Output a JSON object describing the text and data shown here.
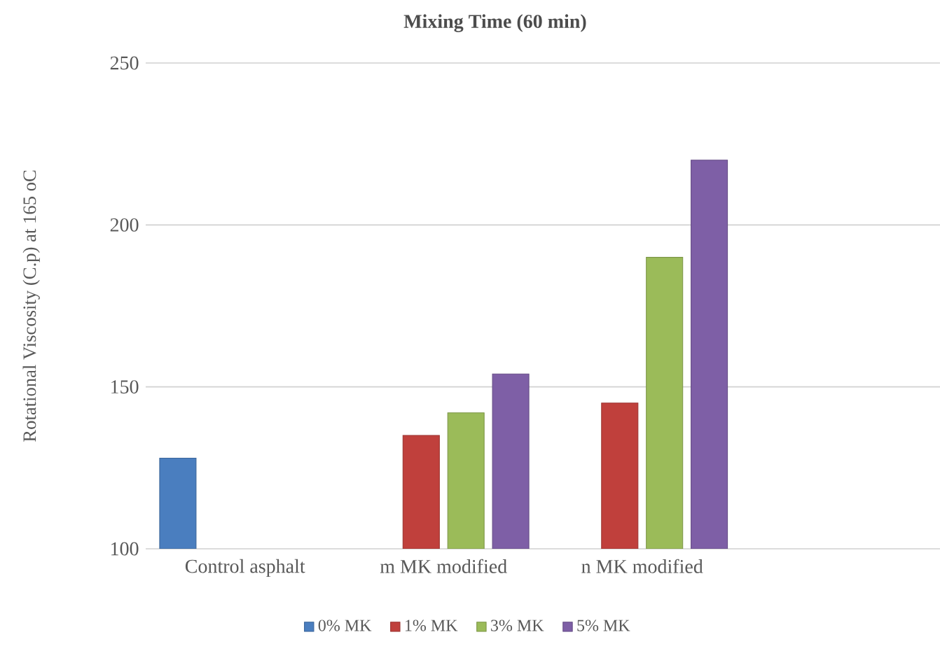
{
  "chart_data": {
    "type": "bar",
    "title": "Mixing Time (60 min)",
    "ylabel": "Rotational Viscosity (C.p) at 165 oC",
    "categories": [
      "Control asphalt",
      "m MK modified",
      "n MK modified",
      null
    ],
    "series": [
      {
        "name": "0% MK",
        "color": "#4a7ebf",
        "values": [
          128,
          null,
          null,
          null
        ]
      },
      {
        "name": "1% MK",
        "color": "#c0403c",
        "values": [
          null,
          135,
          145,
          null
        ]
      },
      {
        "name": "3% MK",
        "color": "#9bbb59",
        "values": [
          null,
          142,
          190,
          null
        ]
      },
      {
        "name": "5% MK",
        "color": "#7e5fa6",
        "values": [
          null,
          154,
          220,
          null
        ]
      }
    ],
    "ylim": [
      100,
      250
    ],
    "yticks": [
      100,
      150,
      200,
      250
    ],
    "grid": "y",
    "legend": "bottom"
  }
}
